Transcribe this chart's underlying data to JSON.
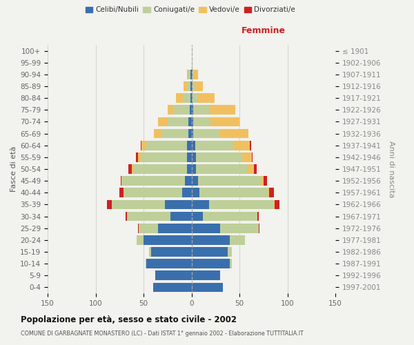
{
  "age_groups": [
    "0-4",
    "5-9",
    "10-14",
    "15-19",
    "20-24",
    "25-29",
    "30-34",
    "35-39",
    "40-44",
    "45-49",
    "50-54",
    "55-59",
    "60-64",
    "65-69",
    "70-74",
    "75-79",
    "80-84",
    "85-89",
    "90-94",
    "95-99",
    "100+"
  ],
  "birth_years": [
    "1997-2001",
    "1992-1996",
    "1987-1991",
    "1982-1986",
    "1977-1981",
    "1972-1976",
    "1967-1971",
    "1962-1966",
    "1957-1961",
    "1952-1956",
    "1947-1951",
    "1942-1946",
    "1937-1941",
    "1932-1936",
    "1927-1931",
    "1922-1926",
    "1917-1921",
    "1912-1916",
    "1907-1911",
    "1902-1906",
    "≤ 1901"
  ],
  "males": {
    "celibinubili": [
      40,
      38,
      47,
      42,
      50,
      35,
      22,
      28,
      10,
      7,
      5,
      5,
      5,
      3,
      3,
      2,
      1,
      1,
      1,
      0,
      0
    ],
    "coniugatie": [
      0,
      0,
      1,
      2,
      7,
      20,
      45,
      55,
      60,
      65,
      55,
      48,
      42,
      28,
      22,
      17,
      8,
      4,
      2,
      0,
      0
    ],
    "vedovie": [
      0,
      0,
      0,
      0,
      0,
      0,
      0,
      0,
      1,
      1,
      2,
      3,
      5,
      8,
      10,
      6,
      7,
      3,
      2,
      0,
      0
    ],
    "divorziatie": [
      0,
      0,
      0,
      0,
      0,
      1,
      2,
      5,
      4,
      1,
      4,
      2,
      1,
      0,
      0,
      0,
      0,
      0,
      0,
      0,
      0
    ]
  },
  "females": {
    "celibinubili": [
      33,
      30,
      40,
      38,
      40,
      30,
      12,
      18,
      8,
      7,
      5,
      5,
      4,
      2,
      2,
      2,
      1,
      1,
      1,
      0,
      0
    ],
    "coniugatie": [
      0,
      0,
      2,
      4,
      16,
      40,
      57,
      68,
      72,
      65,
      53,
      48,
      40,
      27,
      18,
      16,
      5,
      2,
      1,
      0,
      0
    ],
    "vedovie": [
      0,
      0,
      0,
      0,
      0,
      0,
      0,
      1,
      1,
      3,
      7,
      10,
      17,
      30,
      30,
      28,
      18,
      9,
      5,
      1,
      0
    ],
    "divorziatie": [
      0,
      0,
      0,
      0,
      0,
      1,
      1,
      5,
      5,
      4,
      3,
      1,
      1,
      0,
      0,
      0,
      0,
      0,
      0,
      0,
      0
    ]
  },
  "colors": {
    "celibinubili": "#3a6fad",
    "coniugatie": "#bfcf9a",
    "vedovie": "#f0c060",
    "divorziatie": "#cc2222"
  },
  "xlim": 150,
  "title": "Popolazione per età, sesso e stato civile - 2002",
  "subtitle": "COMUNE DI GARBAGNATE MONASTERO (LC) - Dati ISTAT 1° gennaio 2002 - Elaborazione TUTTITALIA.IT",
  "ylabel_left": "Fasce di età",
  "ylabel_right": "Anni di nascita",
  "xlabel_right": "Femmine",
  "legend_labels": [
    "Celibi/Nubili",
    "Coniugati/e",
    "Vedovi/e",
    "Divorziati/e"
  ],
  "bg_color": "#f2f2ee",
  "grid_color": "#cccccc",
  "bar_height": 0.8
}
